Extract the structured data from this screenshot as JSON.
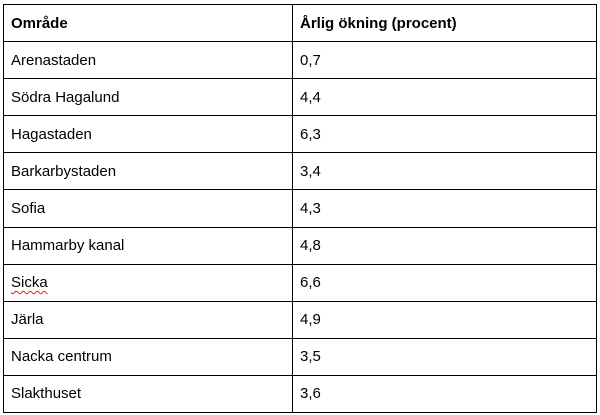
{
  "table": {
    "headers": {
      "area": "Område",
      "value": "Årlig ökning (procent)"
    },
    "rows": [
      {
        "area": "Arenastaden",
        "value": "0,7"
      },
      {
        "area": "Södra Hagalund",
        "value": "4,4"
      },
      {
        "area": "Hagastaden",
        "value": "6,3"
      },
      {
        "area": "Barkarbystaden",
        "value": "3,4"
      },
      {
        "area": "Sofia",
        "value": "4,3"
      },
      {
        "area": "Hammarby kanal",
        "value": "4,8"
      },
      {
        "area": "Sicka",
        "value": "6,6"
      },
      {
        "area": "Järla",
        "value": "4,9"
      },
      {
        "area": "Nacka centrum",
        "value": "3,5"
      },
      {
        "area": "Slakthuset",
        "value": "3,6"
      }
    ]
  },
  "colors": {
    "border": "#000000",
    "spellcheck_underline": "#e0201b"
  }
}
